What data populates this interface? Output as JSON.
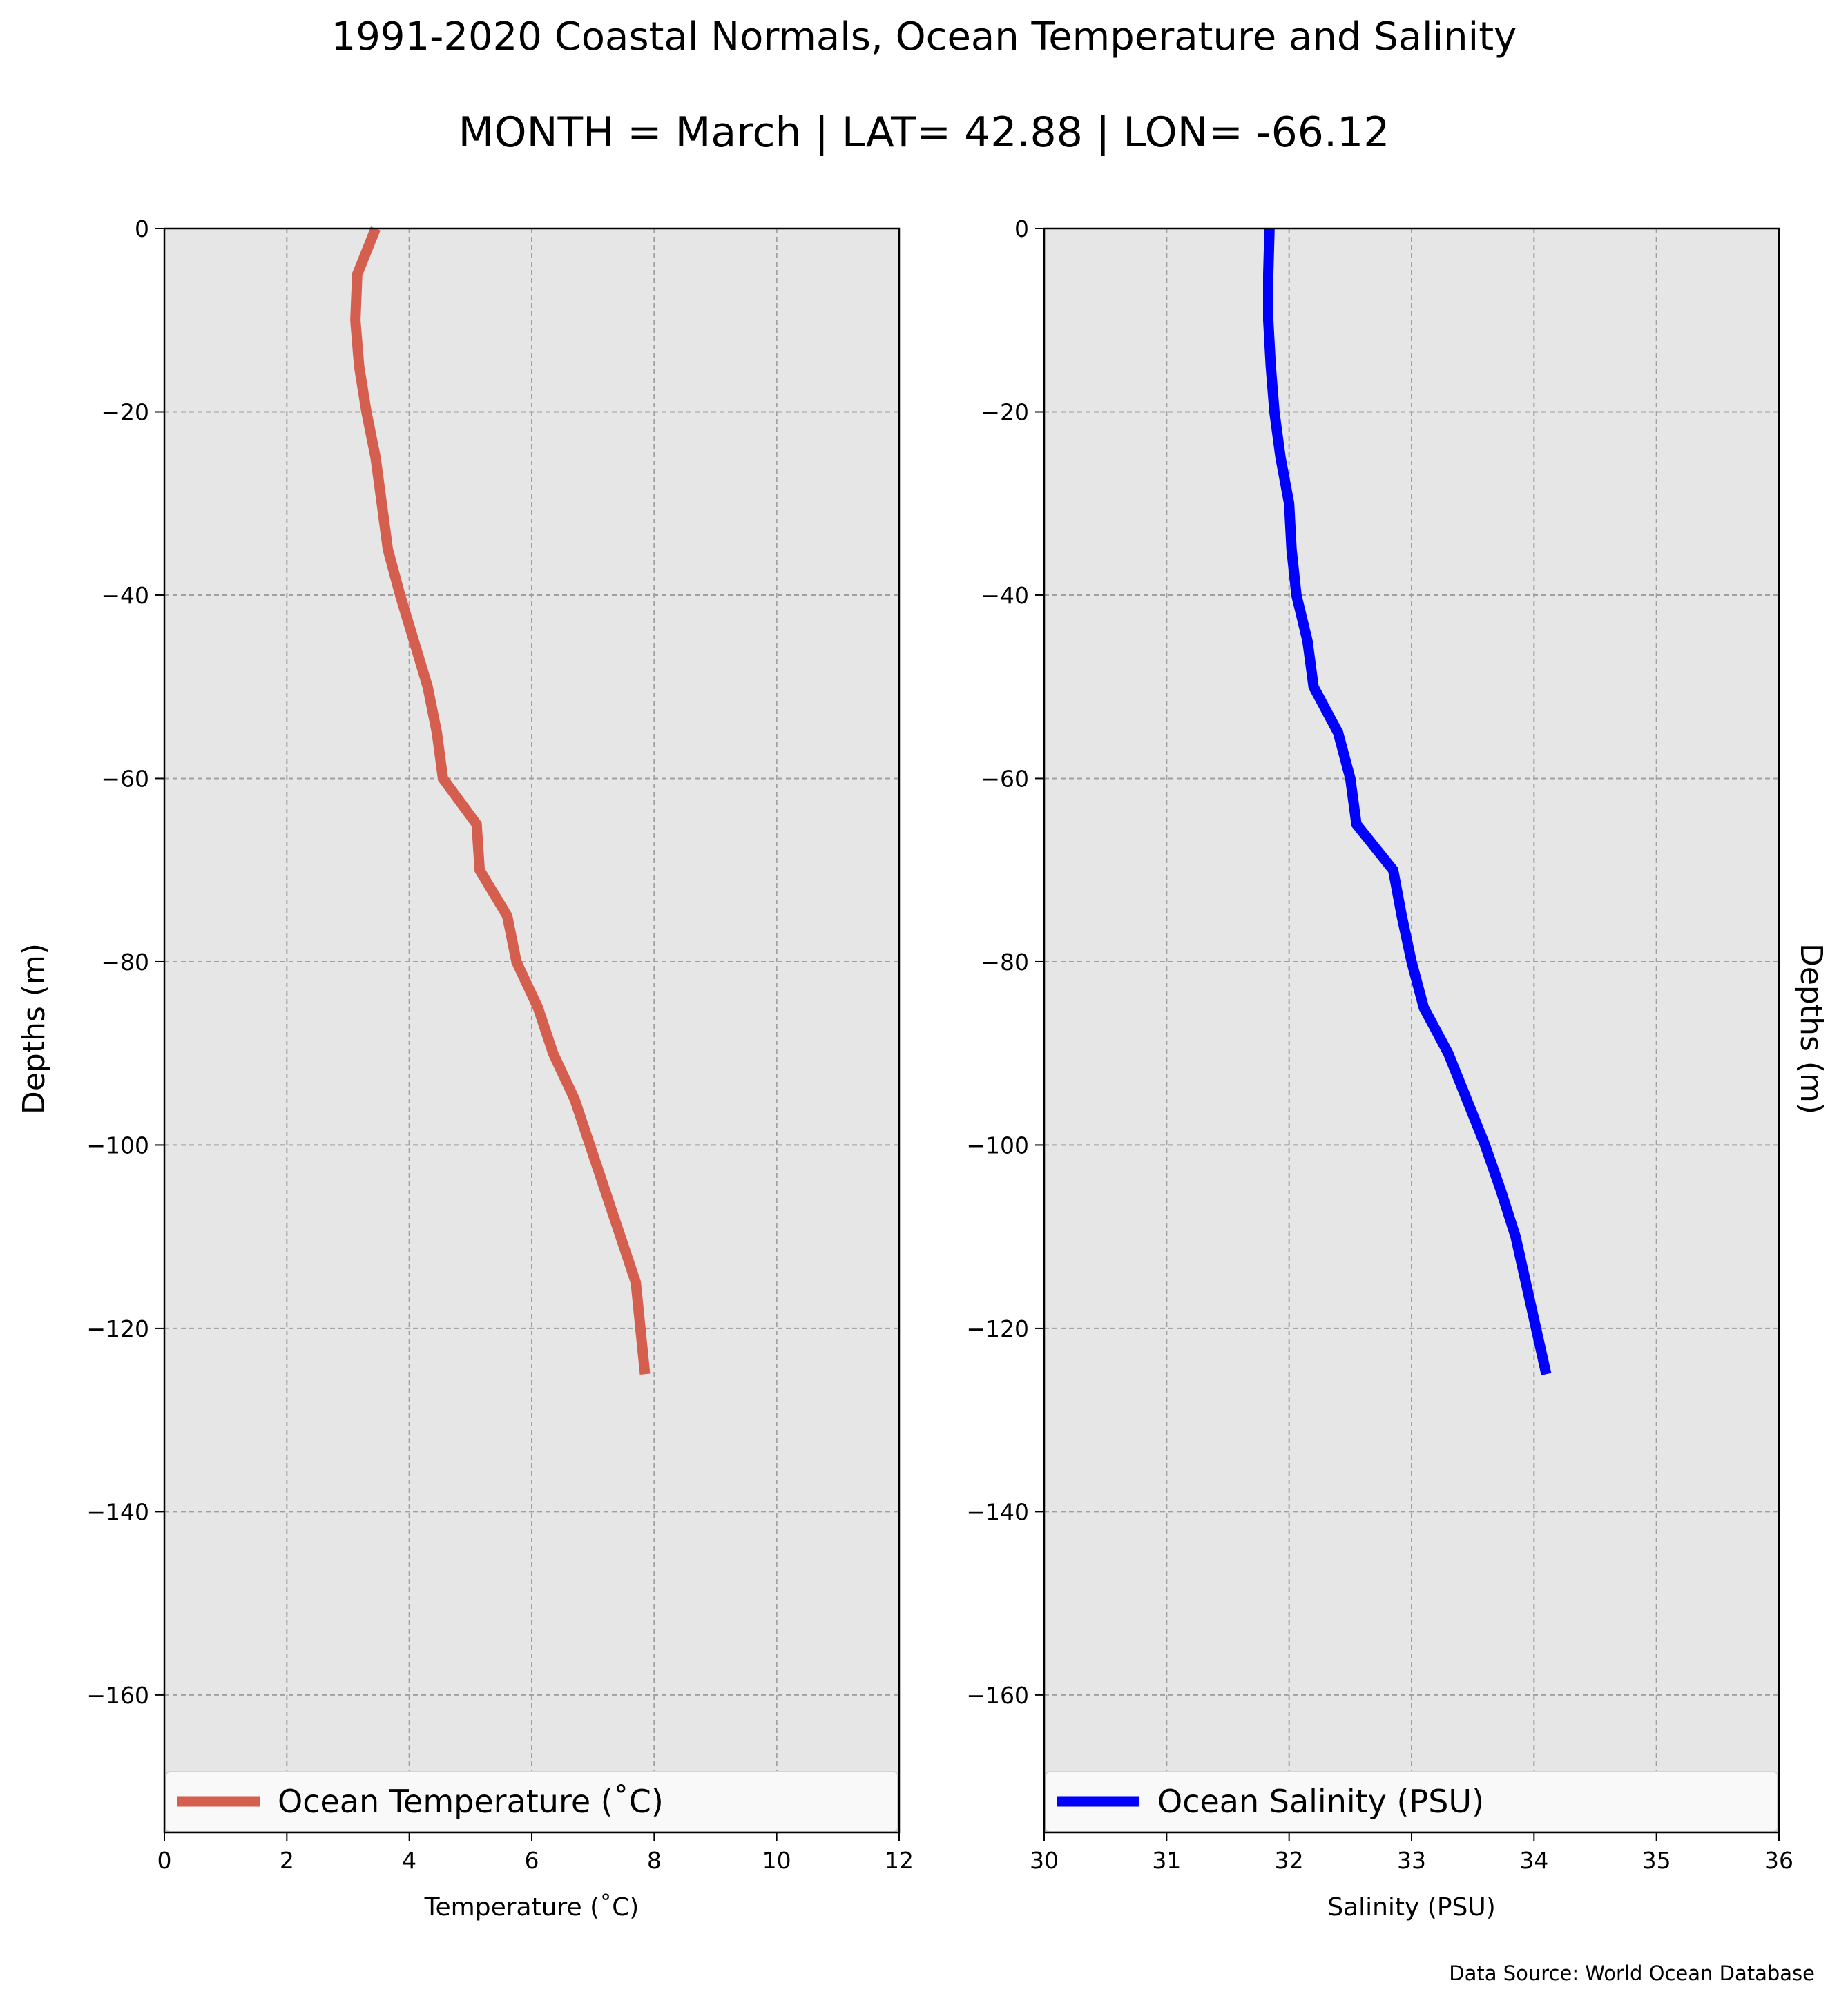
{
  "figure": {
    "title": "1991-2020 Coastal Normals, Ocean Temperature and Salinity",
    "subtitle": "MONTH = March | LAT= 42.88 | LON= -66.12",
    "source": "Data Source: World Ocean Database"
  },
  "chart_data": [
    {
      "type": "line",
      "xlabel": "Temperature ($^\\circ$C)",
      "xlabel_display": "Temperature (˚C)",
      "ylabel": "Depths (m)",
      "xlim": [
        0,
        12
      ],
      "ylim": [
        -175,
        0
      ],
      "xticks": [
        0,
        2,
        4,
        6,
        8,
        10,
        12
      ],
      "xtick_labels": [
        "0",
        "2",
        "4",
        "6",
        "8",
        "10",
        "12"
      ],
      "yticks": [
        0,
        -20,
        -40,
        -60,
        -80,
        -100,
        -120,
        -140,
        -160
      ],
      "ytick_labels": [
        "0",
        "−20",
        "−40",
        "−60",
        "−80",
        "−100",
        "−120",
        "−140",
        "−160"
      ],
      "grid": true,
      "legend_position": "bottom",
      "color": "#d45f4e",
      "series": [
        {
          "name": "Ocean Temperature (˚C)",
          "x": [
            3.45,
            3.15,
            3.12,
            3.18,
            3.3,
            3.45,
            3.55,
            3.65,
            3.85,
            4.3,
            4.45,
            4.55,
            5.1,
            5.15,
            5.6,
            5.75,
            6.1,
            6.35,
            6.7,
            6.95,
            7.2,
            7.45,
            7.7,
            7.85
          ],
          "y": [
            0,
            -5,
            -10,
            -15,
            -20,
            -25,
            -30,
            -35,
            -40,
            -50,
            -55,
            -60,
            -65,
            -70,
            -75,
            -80,
            -85,
            -90,
            -95,
            -100,
            -105,
            -110,
            -115,
            -125
          ]
        }
      ]
    },
    {
      "type": "line",
      "xlabel": "Salinity (PSU)",
      "ylabel": "Depths (m)",
      "xlim": [
        30,
        36
      ],
      "ylim": [
        -175,
        0
      ],
      "xticks": [
        30,
        31,
        32,
        33,
        34,
        35,
        36
      ],
      "xtick_labels": [
        "30",
        "31",
        "32",
        "33",
        "34",
        "35",
        "36"
      ],
      "yticks": [
        0,
        -20,
        -40,
        -60,
        -80,
        -100,
        -120,
        -140,
        -160
      ],
      "ytick_labels": [
        "0",
        "−20",
        "−40",
        "−60",
        "−80",
        "−100",
        "−120",
        "−140",
        "−160"
      ],
      "grid": true,
      "legend_position": "bottom",
      "color": "#0000ff",
      "series": [
        {
          "name": "Ocean Salinity (PSU)",
          "x": [
            31.84,
            31.83,
            31.83,
            31.85,
            31.88,
            31.93,
            32.0,
            32.02,
            32.06,
            32.15,
            32.2,
            32.4,
            32.5,
            32.55,
            32.85,
            32.92,
            33.0,
            33.1,
            33.3,
            33.45,
            33.6,
            33.73,
            33.85,
            34.1
          ],
          "y": [
            0,
            -5,
            -10,
            -15,
            -20,
            -25,
            -30,
            -35,
            -40,
            -45,
            -50,
            -55,
            -60,
            -65,
            -70,
            -75,
            -80,
            -85,
            -90,
            -95,
            -100,
            -105,
            -110,
            -125
          ]
        }
      ]
    }
  ]
}
